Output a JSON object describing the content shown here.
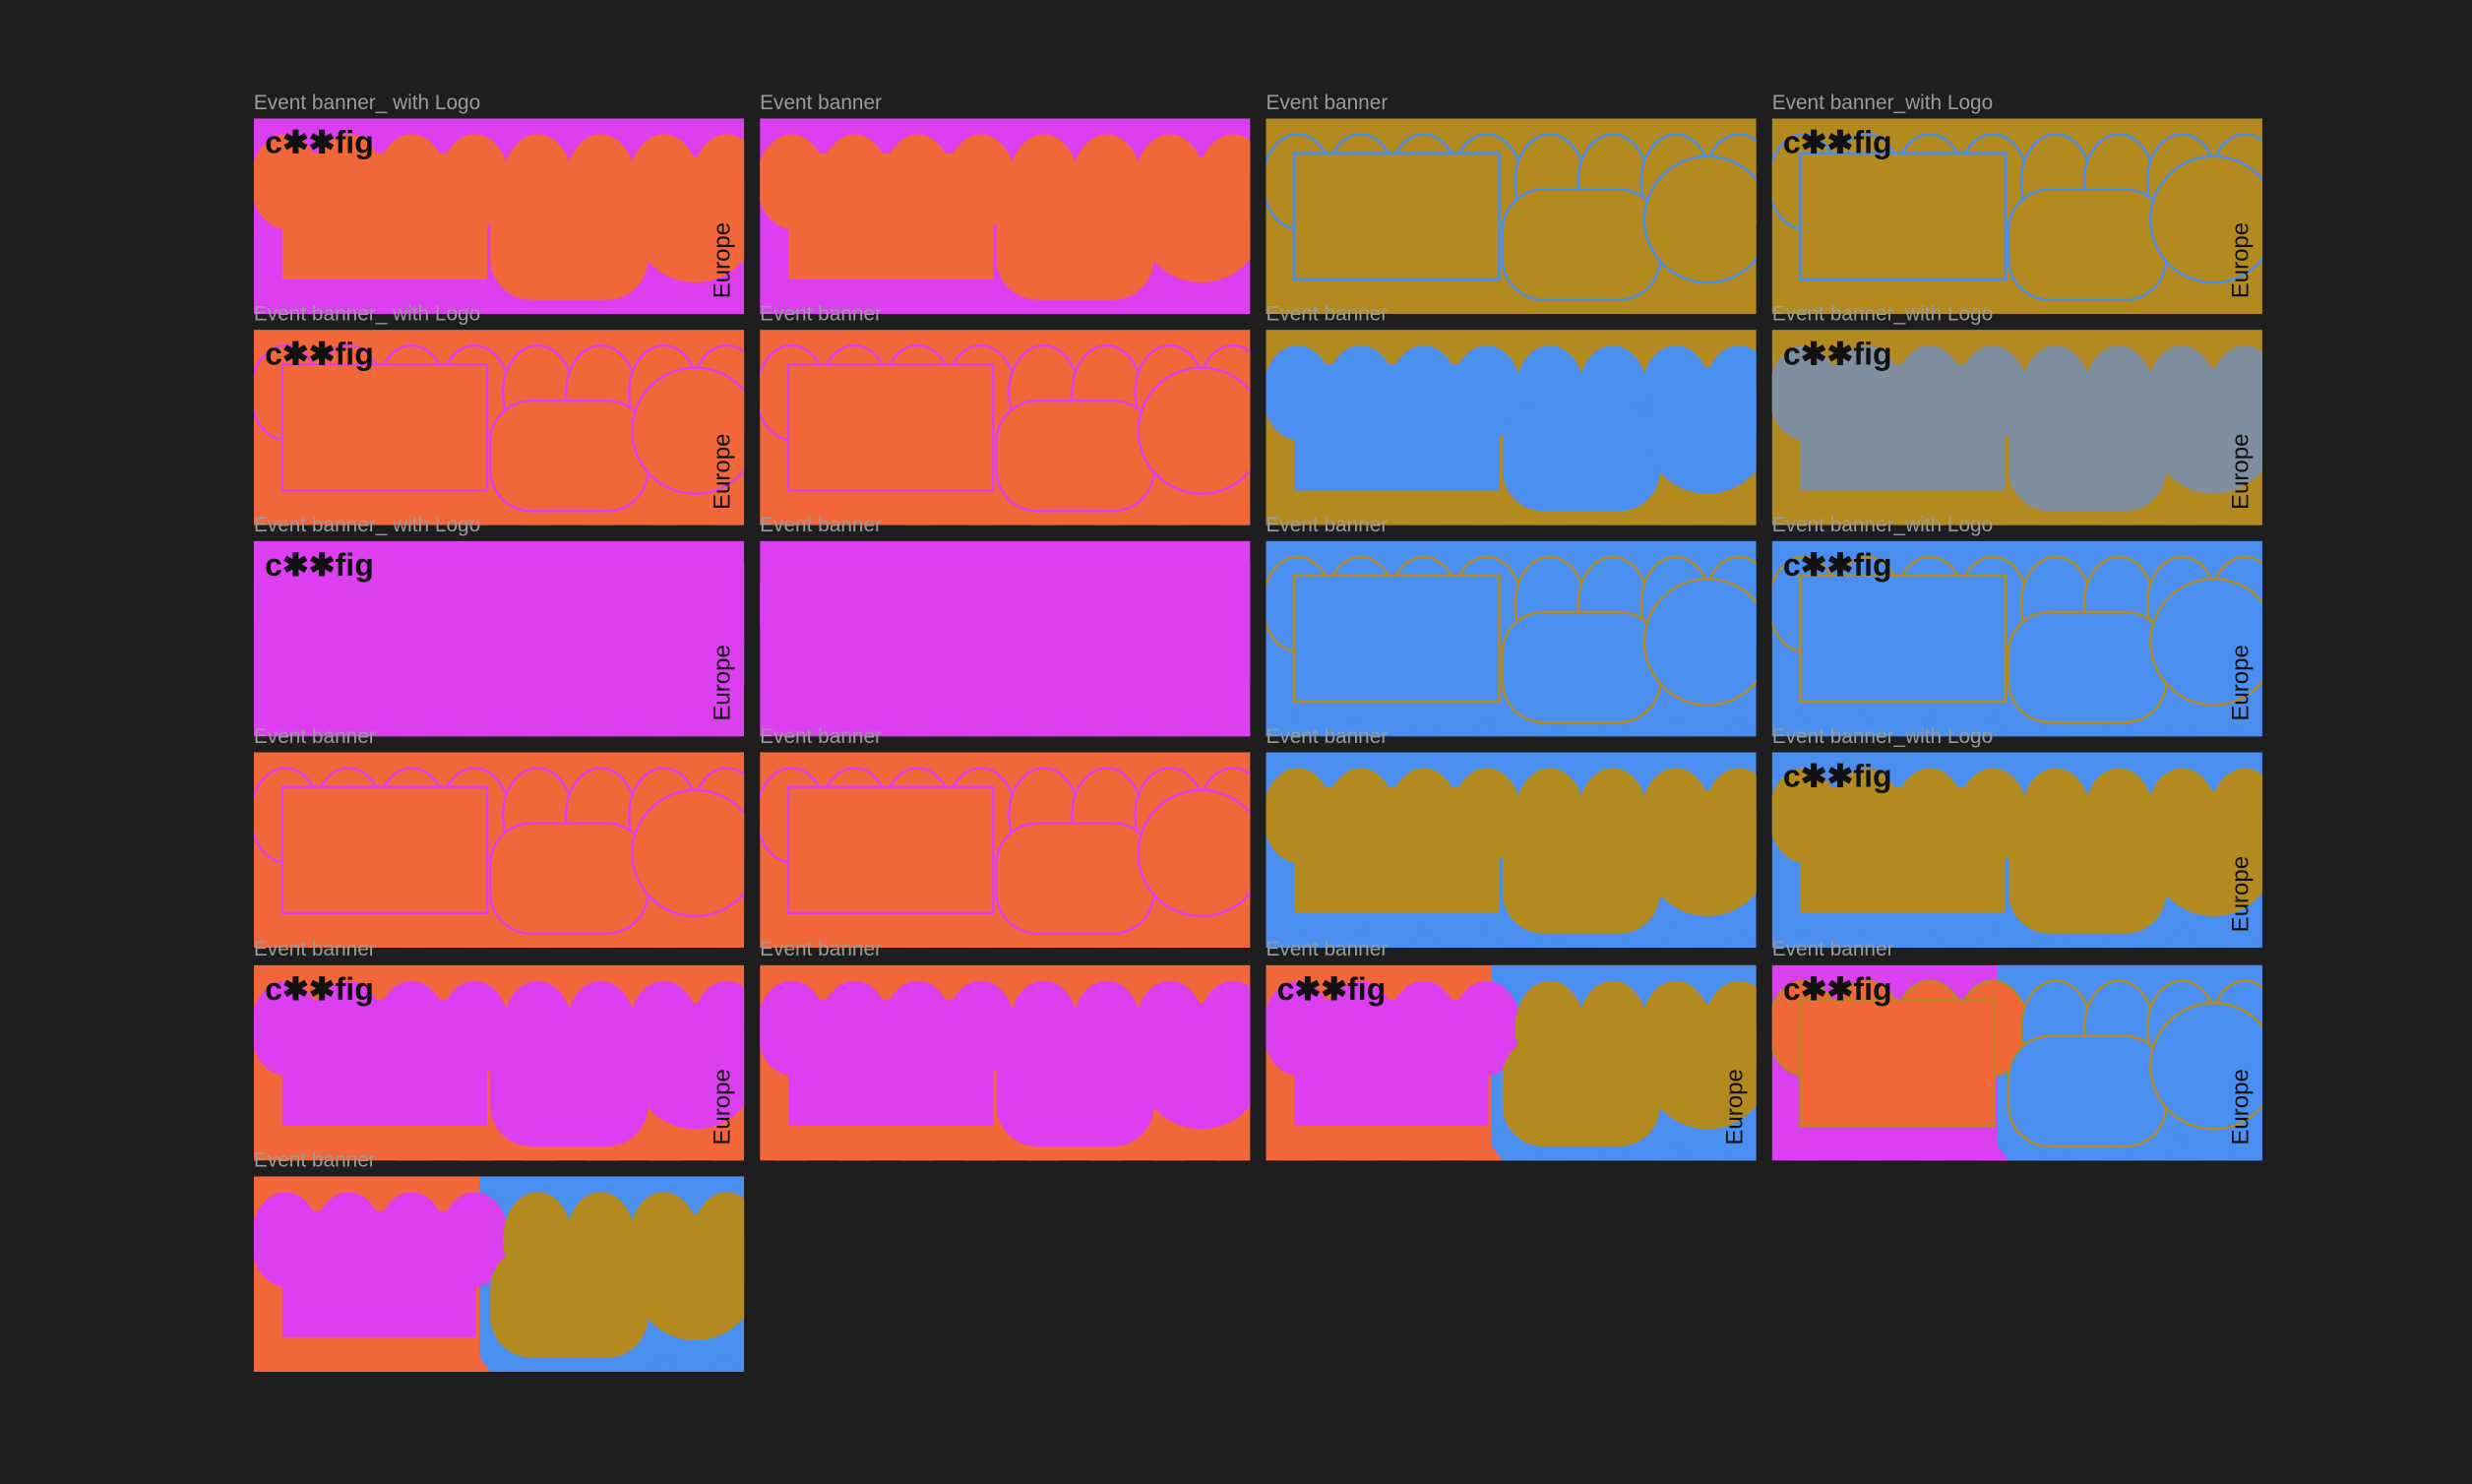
{
  "frames": [
    {
      "label": "Event banner_ with Logo",
      "fill": "#dc3ff0",
      "accent": "#f2673a",
      "logo": "c✱✱fig",
      "side_text": "Europe"
    },
    {
      "label": "Event banner",
      "fill": "#dc3ff0",
      "accent": "#f2673a"
    },
    {
      "label": "Event banner",
      "fill": "#b38a20",
      "accent": "#b38a20",
      "line": "#4a8ef0"
    },
    {
      "label": "Event banner_with Logo",
      "fill": "#b38a20",
      "accent": "#b38a20",
      "line": "#4a8ef0",
      "logo": "c✱✱fig",
      "side_text": "Europe"
    },
    {
      "label": "Event banner_ with Logo",
      "fill": "#f2673a",
      "accent": "#f2673a",
      "line": "#dc3ff0",
      "logo": "c✱✱fig",
      "side_text": "Europe"
    },
    {
      "label": "Event banner",
      "fill": "#f2673a",
      "accent": "#f2673a",
      "line": "#dc3ff0"
    },
    {
      "label": "Event banner",
      "fill": "#b38a20",
      "accent": "#4a8ef0"
    },
    {
      "label": "Event banner_with Logo",
      "fill": "#b38a20",
      "accent": "#7f8f9f",
      "logo": "c✱✱fig",
      "side_text": "Europe"
    },
    {
      "label": "Event banner_ with Logo",
      "fill": "#dc3ff0",
      "accent": "#dc3ff0",
      "line": "#dc3ff0",
      "logo": "c✱✱fig",
      "side_text": "Europe"
    },
    {
      "label": "Event banner",
      "fill": "#dc3ff0",
      "accent": "#dc3ff0"
    },
    {
      "label": "Event banner",
      "fill": "#4a8ef0",
      "accent": "#4a8ef0",
      "line": "#b38a20"
    },
    {
      "label": "Event banner_with Logo",
      "fill": "#4a8ef0",
      "accent": "#4a8ef0",
      "line": "#b38a20",
      "logo": "c✱✱fig",
      "side_text": "Europe"
    },
    {
      "label": "Event banner",
      "fill": "#f2673a",
      "accent": "#f2673a",
      "line": "#dc3ff0"
    },
    {
      "label": "Event banner",
      "fill": "#f2673a",
      "accent": "#f2673a",
      "line": "#dc3ff0"
    },
    {
      "label": "Event banner",
      "fill": "#4a8ef0",
      "accent": "#b38a20"
    },
    {
      "label": "Event banner_with Logo",
      "fill": "#4a8ef0",
      "accent": "#b38a20",
      "logo": "c✱✱fig",
      "side_text": "Europe"
    },
    {
      "label": "Event banner",
      "fill": "#f2673a",
      "accent": "#dc3ff0",
      "logo": "c✱✱fig",
      "side_text": "Europe"
    },
    {
      "label": "Event banner",
      "fill": "#f2673a",
      "accent": "#dc3ff0"
    },
    {
      "label": "Event banner",
      "fill": "#f2673a",
      "accent": "#dc3ff0",
      "fill_right": "#4a8ef0",
      "accent_right": "#b38a20",
      "logo": "c✱✱fig",
      "side_text": "Europe"
    },
    {
      "label": "Event banner",
      "fill": "#dc3ff0",
      "accent": "#f2673a",
      "fill_right": "#4a8ef0",
      "accent_right": "#4a8ef0",
      "line": "#b38a20",
      "logo": "c✱✱fig",
      "side_text": "Europe"
    },
    {
      "label": "Event banner",
      "fill": "#f2673a",
      "accent": "#dc3ff0",
      "fill_right": "#4a8ef0",
      "accent_right": "#b38a20"
    }
  ]
}
